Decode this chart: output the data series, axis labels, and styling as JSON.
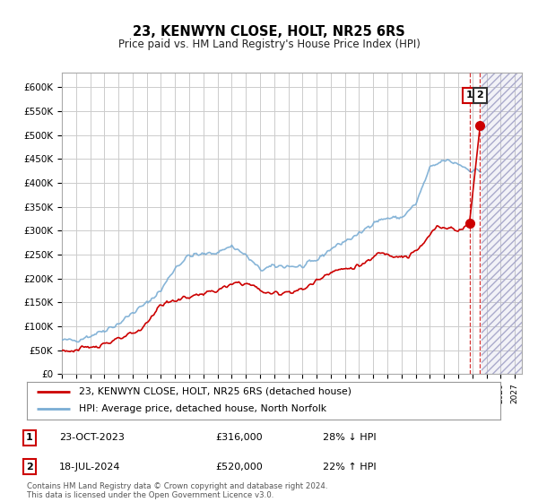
{
  "title": "23, KENWYN CLOSE, HOLT, NR25 6RS",
  "subtitle": "Price paid vs. HM Land Registry's House Price Index (HPI)",
  "ylabel_ticks": [
    "£0",
    "£50K",
    "£100K",
    "£150K",
    "£200K",
    "£250K",
    "£300K",
    "£350K",
    "£400K",
    "£450K",
    "£500K",
    "£550K",
    "£600K"
  ],
  "ytick_values": [
    0,
    50000,
    100000,
    150000,
    200000,
    250000,
    300000,
    350000,
    400000,
    450000,
    500000,
    550000,
    600000
  ],
  "ylim": [
    0,
    630000
  ],
  "xlim_start": 1995.0,
  "xlim_end": 2027.5,
  "hpi_color": "#7aadd4",
  "price_color": "#cc0000",
  "grid_color": "#cccccc",
  "background_color": "#ffffff",
  "legend_label_price": "23, KENWYN CLOSE, HOLT, NR25 6RS (detached house)",
  "legend_label_hpi": "HPI: Average price, detached house, North Norfolk",
  "transaction1_date": "23-OCT-2023",
  "transaction1_price": "£316,000",
  "transaction1_pct": "28% ↓ HPI",
  "transaction2_date": "18-JUL-2024",
  "transaction2_price": "£520,000",
  "transaction2_pct": "22% ↑ HPI",
  "footnote": "Contains HM Land Registry data © Crown copyright and database right 2024.\nThis data is licensed under the Open Government Licence v3.0.",
  "marker1_x": 2023.8,
  "marker1_y": 316000,
  "marker2_x": 2024.55,
  "marker2_y": 520000,
  "vline1_x": 2023.8,
  "vline2_x": 2024.55,
  "future_start": 2024.67
}
